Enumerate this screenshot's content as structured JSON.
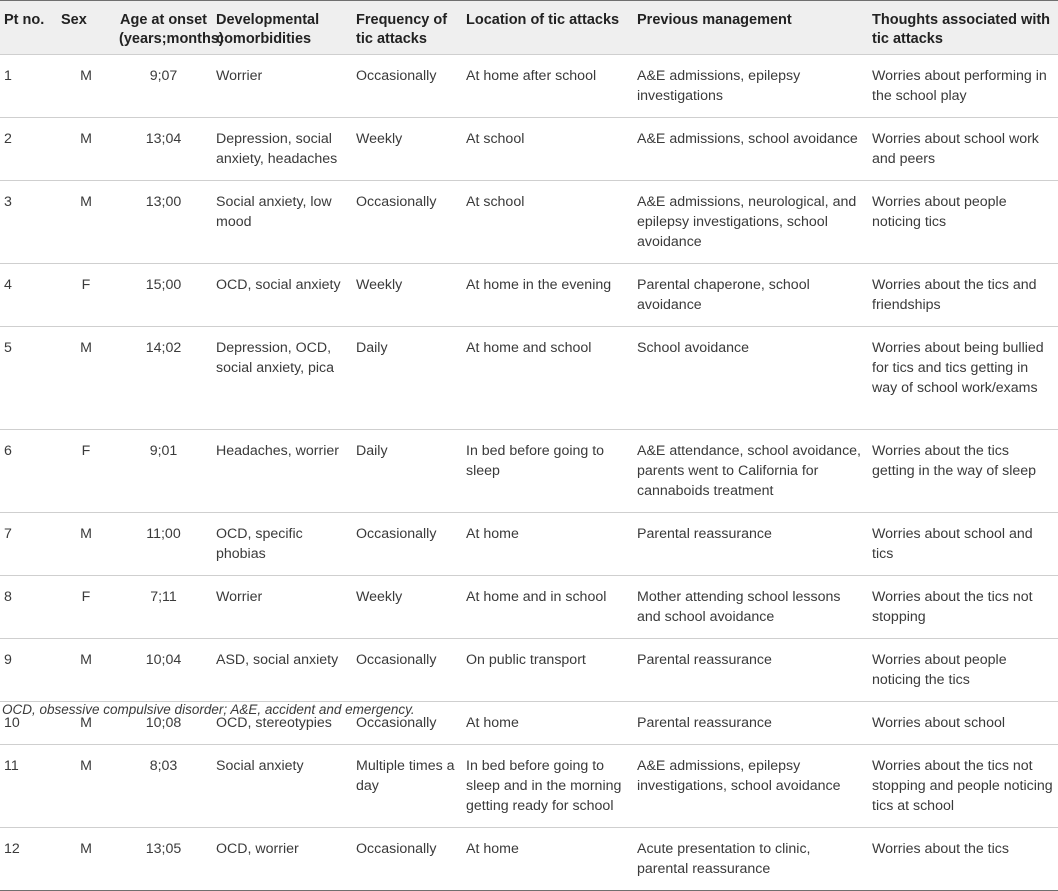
{
  "table": {
    "headers": [
      "Pt no.",
      "Sex",
      "Age at onset (years;months)",
      "Developmental comorbidities",
      "Frequency of tic attacks",
      "Location of tic attacks",
      "Previous management",
      "Thoughts associated with tic attacks"
    ],
    "rows": [
      [
        "1",
        "M",
        "9;07",
        "Worrier",
        "Occasionally",
        "At home after school",
        "A&E admissions, epilepsy investigations",
        "Worries about performing in the school play"
      ],
      [
        "2",
        "M",
        "13;04",
        "Depression, social anxiety, headaches",
        "Weekly",
        "At school",
        "A&E admissions, school avoidance",
        "Worries about school work and peers"
      ],
      [
        "3",
        "M",
        "13;00",
        "Social anxiety, low mood",
        "Occasionally",
        "At school",
        "A&E admissions, neurological, and epilepsy investigations, school avoidance",
        "Worries about people noticing tics"
      ],
      [
        "4",
        "F",
        "15;00",
        "OCD, social anxiety",
        "Weekly",
        "At home in the evening",
        "Parental chaperone, school avoidance",
        "Worries about the tics and friendships"
      ],
      [
        "5",
        "M",
        "14;02",
        "Depression, OCD, social anxiety, pica",
        "Daily",
        "At home and school",
        "School avoidance",
        "Worries about being bullied for tics and tics getting in way of school work/exams"
      ],
      [
        "6",
        "F",
        "9;01",
        "Headaches, worrier",
        "Daily",
        "In bed before going to sleep",
        "A&E attendance, school avoidance, parents went to California for cannaboids treatment",
        "Worries about the tics getting in the way of sleep"
      ],
      [
        "7",
        "M",
        "11;00",
        "OCD, specific phobias",
        "Occasionally",
        "At home",
        "Parental reassurance",
        "Worries about school and tics"
      ],
      [
        "8",
        "F",
        "7;11",
        "Worrier",
        "Weekly",
        "At home and in school",
        "Mother attending school lessons and school avoidance",
        "Worries about the tics not stopping"
      ],
      [
        "9",
        "M",
        "10;04",
        "ASD, social anxiety",
        "Occasionally",
        "On public transport",
        "Parental reassurance",
        "Worries about people noticing the tics"
      ],
      [
        "10",
        "M",
        "10;08",
        "OCD, stereotypies",
        "Occasionally",
        "At home",
        "Parental reassurance",
        "Worries about school"
      ],
      [
        "11",
        "M",
        "8;03",
        "Social anxiety",
        "Multiple times a day",
        "In bed before going to sleep and in the morning getting ready for school",
        "A&E admissions, epilepsy investigations, school avoidance",
        "Worries about the tics not stopping and people noticing tics at school"
      ],
      [
        "12",
        "M",
        "13;05",
        "OCD, worrier",
        "Occasionally",
        "At home",
        "Acute presentation to clinic, parental reassurance",
        "Worries about the tics"
      ]
    ]
  },
  "footnote": "OCD, obsessive compulsive disorder; A&E, accident and emergency."
}
